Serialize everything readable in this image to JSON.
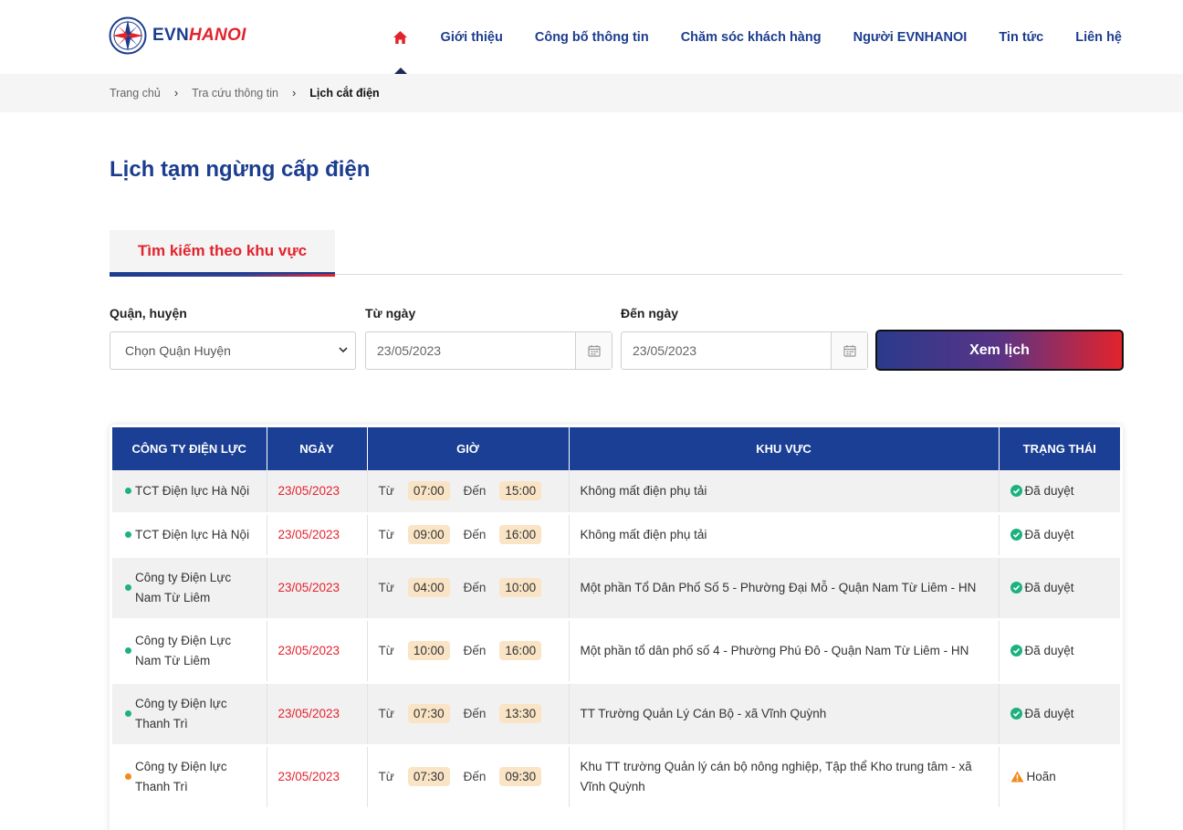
{
  "header": {
    "logo": {
      "evn": "EVN",
      "hanoi": "HANOI"
    },
    "nav": [
      {
        "label": "Giới thiệu"
      },
      {
        "label": "Công bố thông tin"
      },
      {
        "label": "Chăm sóc khách hàng"
      },
      {
        "label": "Người EVNHANOI"
      },
      {
        "label": "Tin tức"
      },
      {
        "label": "Liên hệ"
      }
    ]
  },
  "breadcrumb": {
    "items": [
      "Trang chủ",
      "Tra cứu thông tin",
      "Lịch cắt điện"
    ],
    "sep": "›"
  },
  "page": {
    "title": "Lịch tạm ngừng cấp điện"
  },
  "tabs": {
    "active": "Tìm kiếm theo khu vực"
  },
  "form": {
    "district_label": "Quận, huyện",
    "district_value": "Chọn Quận Huyện",
    "from_label": "Từ ngày",
    "from_value": "23/05/2023",
    "to_label": "Đến ngày",
    "to_value": "23/05/2023",
    "submit_label": "Xem lịch"
  },
  "table": {
    "headers": [
      "CÔNG TY ĐIỆN LỰC",
      "NGÀY",
      "GIỜ",
      "KHU VỰC",
      "TRẠNG THÁI"
    ],
    "from_word": "Từ",
    "to_word": "Đến",
    "rows": [
      {
        "company": "TCT Điện lực Hà Nội",
        "date": "23/05/2023",
        "start": "07:00",
        "end": "15:00",
        "area": "Không mất điện phụ tải",
        "status": "Đã duyệt",
        "state": "approved"
      },
      {
        "company": "TCT Điện lực Hà Nội",
        "date": "23/05/2023",
        "start": "09:00",
        "end": "16:00",
        "area": "Không mất điện phụ tải",
        "status": "Đã duyệt",
        "state": "approved"
      },
      {
        "company": "Công ty Điện Lực Nam Từ Liêm",
        "date": "23/05/2023",
        "start": "04:00",
        "end": "10:00",
        "area": "Một phần Tổ Dân Phố Số 5 - Phường Đại Mỗ - Quận Nam Từ Liêm - HN",
        "status": "Đã duyệt",
        "state": "approved"
      },
      {
        "company": "Công ty Điện Lực Nam Từ Liêm",
        "date": "23/05/2023",
        "start": "10:00",
        "end": "16:00",
        "area": "Một phần tổ dân phố số 4 - Phường Phú Đô - Quận Nam Từ Liêm - HN",
        "status": "Đã duyệt",
        "state": "approved"
      },
      {
        "company": "Công ty Điện lực Thanh Trì",
        "date": "23/05/2023",
        "start": "07:30",
        "end": "13:30",
        "area": "TT Trường Quản Lý Cán Bộ - xã Vĩnh Quỳnh",
        "status": "Đã duyệt",
        "state": "approved"
      },
      {
        "company": "Công ty Điện lực Thanh Trì",
        "date": "23/05/2023",
        "start": "07:30",
        "end": "09:30",
        "area": "Khu TT trường Quản lý cán bộ nông nghiệp, Tập thể Kho trung tâm - xã Vĩnh Quỳnh",
        "status": "Hoãn",
        "state": "postponed"
      }
    ]
  },
  "colors": {
    "brand_blue": "#1c3d8f",
    "brand_red": "#e3232c",
    "approved_green": "#1bb27d",
    "postponed_orange": "#f28a1b"
  }
}
